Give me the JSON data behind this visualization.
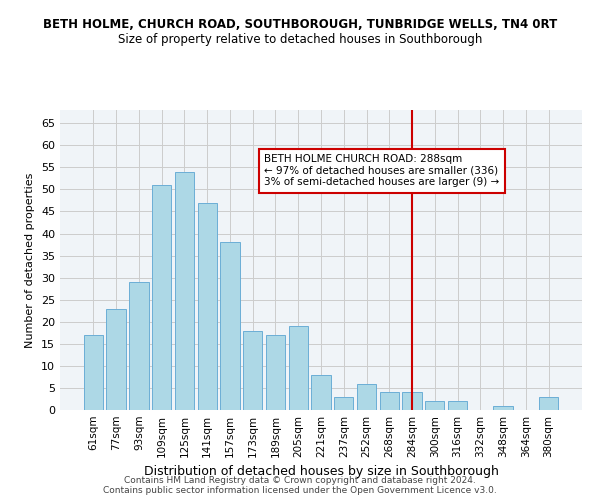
{
  "title": "BETH HOLME, CHURCH ROAD, SOUTHBOROUGH, TUNBRIDGE WELLS, TN4 0RT",
  "subtitle": "Size of property relative to detached houses in Southborough",
  "xlabel": "Distribution of detached houses by size in Southborough",
  "ylabel": "Number of detached properties",
  "bar_labels": [
    "61sqm",
    "77sqm",
    "93sqm",
    "109sqm",
    "125sqm",
    "141sqm",
    "157sqm",
    "173sqm",
    "189sqm",
    "205sqm",
    "221sqm",
    "237sqm",
    "252sqm",
    "268sqm",
    "284sqm",
    "300sqm",
    "316sqm",
    "332sqm",
    "348sqm",
    "364sqm",
    "380sqm"
  ],
  "bar_values": [
    17,
    23,
    29,
    51,
    54,
    47,
    38,
    18,
    17,
    19,
    8,
    3,
    6,
    4,
    4,
    2,
    2,
    0,
    1,
    0,
    3
  ],
  "bar_color": "#add8e6",
  "bar_edge_color": "#6baed6",
  "background_color": "#f0f4f8",
  "grid_color": "#cccccc",
  "vline_x": 14,
  "vline_color": "#cc0000",
  "ylim": [
    0,
    68
  ],
  "yticks": [
    0,
    5,
    10,
    15,
    20,
    25,
    30,
    35,
    40,
    45,
    50,
    55,
    60,
    65
  ],
  "annotation_title": "BETH HOLME CHURCH ROAD: 288sqm",
  "annotation_line1": "← 97% of detached houses are smaller (336)",
  "annotation_line2": "3% of semi-detached houses are larger (9) →",
  "annotation_box_color": "#ffffff",
  "annotation_box_edge_color": "#cc0000",
  "footer1": "Contains HM Land Registry data © Crown copyright and database right 2024.",
  "footer2": "Contains public sector information licensed under the Open Government Licence v3.0."
}
